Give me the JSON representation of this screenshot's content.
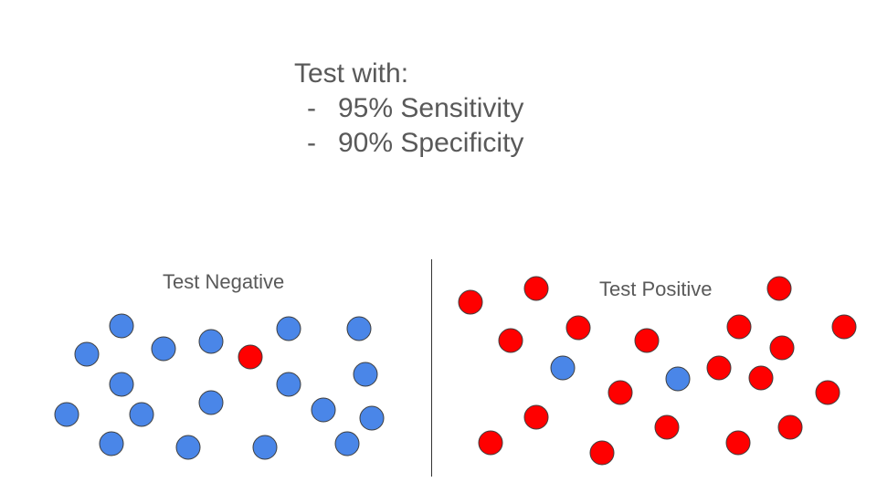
{
  "heading": {
    "title": "Test with:",
    "bullets": [
      "95% Sensitivity",
      "90% Specificity"
    ]
  },
  "groups": {
    "negative": {
      "label": "Test Negative"
    },
    "positive": {
      "label": "Test Positive"
    }
  },
  "colors": {
    "blue": "#4a86e8",
    "red": "#ff0000",
    "outline": "#3d3d3d",
    "text": "#595959"
  }
}
